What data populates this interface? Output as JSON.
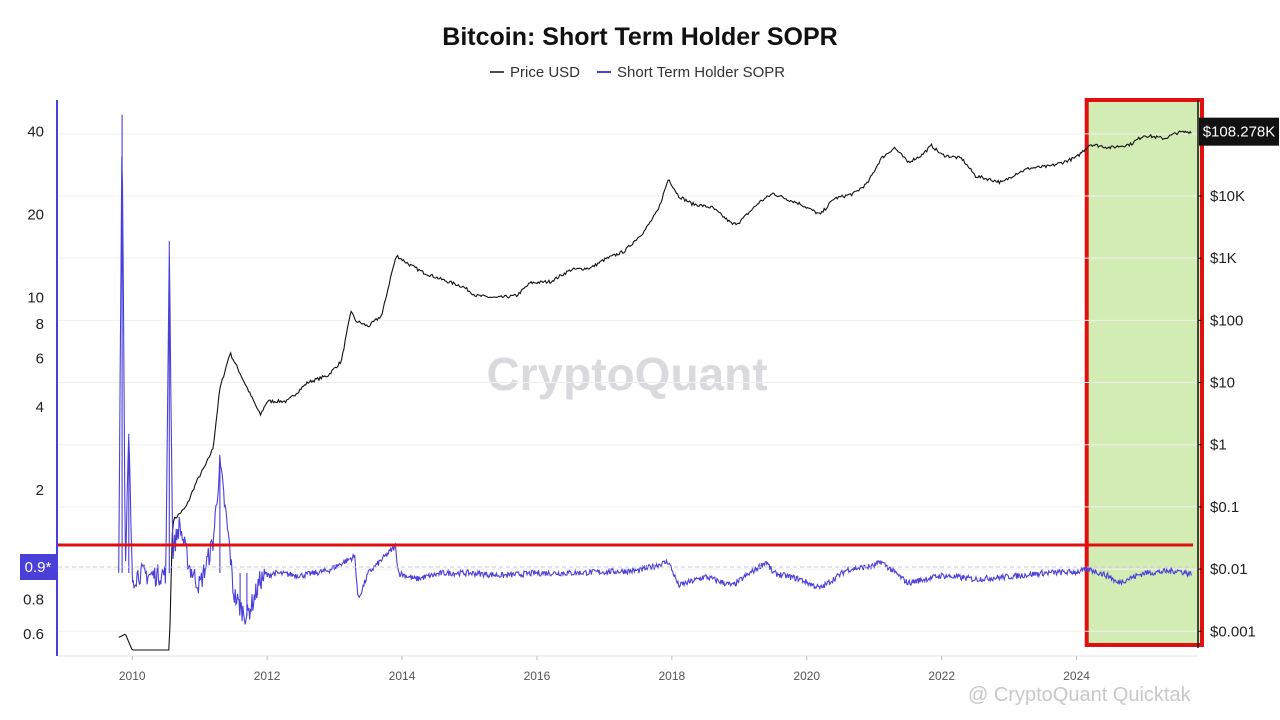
{
  "chart_data": {
    "type": "line",
    "title": "Bitcoin: Short Term Holder SOPR",
    "legend": {
      "placement": "top-center",
      "items": [
        "Price USD",
        "Short Term Holder SOPR"
      ]
    },
    "colors": {
      "price": "#111111",
      "sopr": "#4b3fd9",
      "highlight_fill": "#d3ecb4",
      "highlight_border": "#e01010",
      "threshold_line": "#e01010",
      "price_tag_bg": "#111111",
      "sopr_tag_bg": "#4b3fd9"
    },
    "x_axis": {
      "ticks": [
        "2010",
        "2012",
        "2014",
        "2016",
        "2018",
        "2020",
        "2022",
        "2024"
      ],
      "range": [
        2008.9,
        2025.8
      ]
    },
    "y_left": {
      "label": "",
      "scale": "log",
      "ticks": [
        "0.6",
        "0.8",
        "2",
        "4",
        "6",
        "8",
        "10",
        "20",
        "40"
      ],
      "range": [
        0.5,
        52
      ]
    },
    "y_right": {
      "label": "",
      "scale": "log",
      "ticks": [
        "$0.001",
        "$0.01",
        "$0.1",
        "$1",
        "$10",
        "$100",
        "$1K",
        "$10K"
      ],
      "range": [
        0.0004,
        350000
      ]
    },
    "series": [
      {
        "name": "Price USD",
        "axis": "right",
        "x": [
          2009.8,
          2009.9,
          2010.0,
          2010.55,
          2010.6,
          2010.8,
          2010.95,
          2011.1,
          2011.2,
          2011.3,
          2011.45,
          2011.6,
          2011.8,
          2011.9,
          2012.0,
          2012.3,
          2012.6,
          2012.9,
          2013.1,
          2013.25,
          2013.3,
          2013.5,
          2013.7,
          2013.85,
          2013.92,
          2014.1,
          2014.3,
          2014.6,
          2014.9,
          2015.1,
          2015.4,
          2015.7,
          2015.9,
          2016.2,
          2016.5,
          2016.8,
          2017.0,
          2017.3,
          2017.6,
          2017.8,
          2017.95,
          2018.1,
          2018.3,
          2018.6,
          2018.9,
          2019.0,
          2019.3,
          2019.5,
          2019.7,
          2019.9,
          2020.2,
          2020.4,
          2020.7,
          2020.9,
          2021.1,
          2021.3,
          2021.5,
          2021.7,
          2021.85,
          2022.0,
          2022.3,
          2022.5,
          2022.9,
          2023.1,
          2023.3,
          2023.6,
          2023.8,
          2024.0,
          2024.2,
          2024.5,
          2024.8,
          2025.0,
          2025.3,
          2025.5,
          2025.7
        ],
        "y": [
          0.0008,
          0.0009,
          0.0005,
          0.0005,
          0.06,
          0.1,
          0.25,
          0.5,
          0.9,
          8,
          30,
          14,
          5,
          3,
          5,
          5,
          10,
          13,
          22,
          150,
          100,
          80,
          120,
          600,
          1100,
          800,
          600,
          450,
          350,
          250,
          230,
          250,
          400,
          420,
          650,
          700,
          950,
          1300,
          2800,
          6000,
          19000,
          10000,
          7500,
          6500,
          3500,
          3800,
          8000,
          11000,
          9000,
          7500,
          5000,
          9000,
          11000,
          16000,
          40000,
          60000,
          35000,
          45000,
          65000,
          46000,
          40000,
          21000,
          16500,
          23000,
          28000,
          30000,
          35000,
          42000,
          68000,
          60000,
          68000,
          95000,
          84000,
          105000,
          108278
        ]
      },
      {
        "name": "Short Term Holder SOPR",
        "axis": "left",
        "x": [
          2009.8,
          2009.85,
          2009.9,
          2009.95,
          2010.0,
          2010.1,
          2010.3,
          2010.5,
          2010.55,
          2010.6,
          2010.7,
          2010.85,
          2011.0,
          2011.2,
          2011.3,
          2011.45,
          2011.5,
          2011.6,
          2011.7,
          2011.8,
          2011.9,
          2012.1,
          2012.5,
          2012.9,
          2013.3,
          2013.35,
          2013.5,
          2013.9,
          2013.95,
          2014.2,
          2014.6,
          2015.0,
          2015.5,
          2016.0,
          2016.5,
          2017.0,
          2017.5,
          2017.95,
          2018.1,
          2018.5,
          2018.9,
          2019.4,
          2019.5,
          2019.9,
          2020.2,
          2020.6,
          2021.0,
          2021.1,
          2021.5,
          2022.0,
          2022.5,
          2023.0,
          2023.5,
          2024.0,
          2024.2,
          2024.5,
          2024.6,
          2025.0,
          2025.5,
          2025.7
        ],
        "y": [
          1.0,
          46.0,
          1.0,
          3.2,
          0.95,
          1.0,
          0.98,
          1.0,
          16.0,
          1.2,
          1.5,
          1.05,
          0.9,
          1.3,
          2.5,
          1.2,
          0.85,
          0.75,
          0.7,
          0.8,
          0.95,
          1.0,
          0.98,
          1.02,
          1.15,
          0.8,
          1.0,
          1.25,
          1.0,
          0.95,
          1.0,
          1.0,
          0.98,
          1.0,
          1.0,
          1.01,
          1.02,
          1.1,
          0.9,
          0.97,
          0.9,
          1.1,
          1.0,
          0.95,
          0.88,
          1.03,
          1.06,
          1.1,
          0.92,
          0.98,
          0.95,
          0.97,
          1.0,
          1.01,
          1.03,
          0.97,
          0.92,
          1.0,
          1.02,
          0.99
        ]
      }
    ],
    "annotations": {
      "price_tag": "$108.278K",
      "sopr_tag": "0.9*",
      "highlight_range_x": [
        2024.15,
        2025.8
      ],
      "threshold_y": 1.0
    }
  },
  "watermark": "CryptoQuant",
  "credit": "@ CryptoQuant Quicktak"
}
